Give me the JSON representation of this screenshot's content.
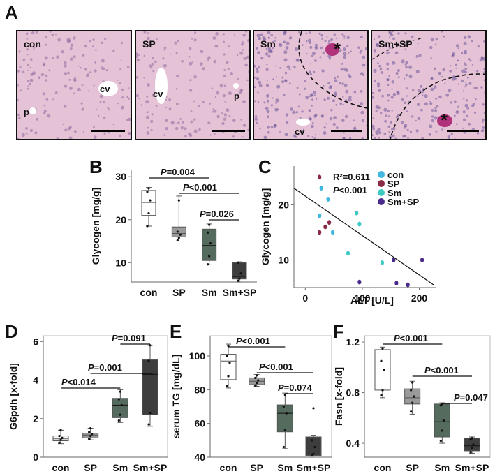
{
  "panel_letters": {
    "a": "A",
    "b": "B",
    "c": "C",
    "d": "D",
    "e": "E",
    "f": "F"
  },
  "micrographs": [
    {
      "label": "con",
      "annotations": [
        "cv",
        "p"
      ]
    },
    {
      "label": "SP",
      "annotations": [
        "cv",
        "p"
      ]
    },
    {
      "label": "Sm",
      "annotations": [
        "cv",
        "*"
      ]
    },
    {
      "label": "Sm+SP",
      "annotations": [
        "*"
      ]
    }
  ],
  "colors": {
    "con": "#ffffff",
    "SP": "#9a9a9a",
    "Sm": "#556b5e",
    "Sm+SP": "#3d3d3d",
    "scatter_con": "#40b8e0",
    "scatter_SP": "#8b2a45",
    "scatter_Sm": "#3ec9c0",
    "scatter_SmSP": "#4a2a8a",
    "tissue": "#e6c2d6"
  },
  "chart_data": [
    {
      "type": "box",
      "panel": "B",
      "ylabel": "Glycogen [mg/g]",
      "categories": [
        "con",
        "SP",
        "Sm",
        "Sm+SP"
      ],
      "yticks": [
        10,
        20,
        30
      ],
      "ylim": [
        5.5,
        31.5
      ],
      "boxes": [
        {
          "min": 18.5,
          "q1": 21,
          "median": 24,
          "q3": 26.8,
          "max": 27.5,
          "points": [
            18.5,
            21.5,
            24.5,
            26.5,
            27.3
          ]
        },
        {
          "min": 15,
          "q1": 16,
          "median": 16.8,
          "q3": 18.3,
          "max": 25.5,
          "points": [
            15.2,
            15.8,
            16.5,
            17.2,
            24.5
          ]
        },
        {
          "min": 9.5,
          "q1": 10.5,
          "median": 14,
          "q3": 17.8,
          "max": 19,
          "points": [
            9.6,
            11.5,
            14.5,
            17,
            18.8
          ]
        },
        {
          "min": 5.5,
          "q1": 6.2,
          "median": 6.8,
          "q3": 10,
          "max": 10.2,
          "points": [
            5.8,
            6.3,
            7.5,
            10
          ]
        }
      ],
      "comparisons": [
        {
          "from": 0,
          "to": 2,
          "text": "P=0.004"
        },
        {
          "from": 1,
          "to": 3,
          "text": "P<0.001"
        },
        {
          "from": 2,
          "to": 3,
          "text": "P=0.026"
        }
      ]
    },
    {
      "type": "scatter",
      "panel": "C",
      "xlabel": "ALT [U/L]",
      "ylabel": "Glycogen [mg/g]",
      "xticks": [
        0,
        100,
        200
      ],
      "yticks": [
        10,
        20
      ],
      "xlim": [
        -20,
        230
      ],
      "ylim": [
        5,
        27
      ],
      "r2_label": "R²=0.611",
      "p_label": "P<0.001",
      "series": [
        {
          "name": "con",
          "points": [
            [
              25,
              18
            ],
            [
              28,
              23
            ],
            [
              40,
              21
            ],
            [
              48,
              15
            ]
          ]
        },
        {
          "name": "SP",
          "points": [
            [
              25,
              25
            ],
            [
              25,
              15
            ],
            [
              35,
              16
            ],
            [
              42,
              16.8
            ]
          ]
        },
        {
          "name": "Sm",
          "points": [
            [
              75,
              11.2
            ],
            [
              90,
              18.5
            ],
            [
              95,
              16.5
            ],
            [
              135,
              9.5
            ]
          ]
        },
        {
          "name": "Sm+SP",
          "points": [
            [
              95,
              6
            ],
            [
              155,
              10
            ],
            [
              160,
              5.8
            ],
            [
              180,
              5.5
            ],
            [
              205,
              10
            ]
          ]
        }
      ],
      "regression": [
        [
          -20,
          23
        ],
        [
          225,
          5.5
        ]
      ]
    },
    {
      "type": "box",
      "panel": "D",
      "ylabel": "G6pdh [x-fold]",
      "categories": [
        "con",
        "SP",
        "Sm",
        "Sm+SP"
      ],
      "yticks": [
        0,
        2,
        4,
        6
      ],
      "ylim": [
        0,
        6.3
      ],
      "boxes": [
        {
          "min": 0.7,
          "q1": 0.85,
          "median": 0.95,
          "q3": 1.1,
          "max": 1.4,
          "points": [
            0.75,
            0.9,
            1.0,
            1.1,
            1.4
          ]
        },
        {
          "min": 0.9,
          "q1": 1.0,
          "median": 1.15,
          "q3": 1.25,
          "max": 1.5,
          "points": [
            0.95,
            1.1,
            1.2,
            1.3,
            1.5
          ]
        },
        {
          "min": 1.8,
          "q1": 2.05,
          "median": 2.7,
          "q3": 3.05,
          "max": 3.5,
          "points": [
            1.9,
            2.2,
            2.7,
            3.0,
            3.4
          ]
        },
        {
          "min": 1.6,
          "q1": 2.2,
          "median": 4.3,
          "q3": 5.05,
          "max": 5.8,
          "points": [
            1.7,
            2.3,
            4.3,
            5.0,
            5.8
          ]
        }
      ],
      "comparisons": [
        {
          "from": 0,
          "to": 2,
          "text": "P<0.014"
        },
        {
          "from": 1,
          "to": 3,
          "text": "P=0.001"
        },
        {
          "from": 2,
          "to": 3,
          "text": "P=0.091"
        }
      ]
    },
    {
      "type": "box",
      "panel": "E",
      "ylabel": "serum TG [mg/dL]",
      "categories": [
        "con",
        "SP",
        "Sm",
        "Sm+SP"
      ],
      "yticks": [
        40,
        60,
        80,
        100
      ],
      "ylim": [
        40,
        112
      ],
      "boxes": [
        {
          "min": 81,
          "q1": 86,
          "median": 97,
          "q3": 101,
          "max": 107,
          "points": [
            82,
            88,
            96,
            100,
            106
          ]
        },
        {
          "min": 82,
          "q1": 83,
          "median": 85,
          "q3": 87,
          "max": 89,
          "points": [
            82.5,
            84,
            85.5,
            87,
            88.5
          ]
        },
        {
          "min": 45,
          "q1": 55,
          "median": 66,
          "q3": 71,
          "max": 78,
          "points": [
            46,
            56,
            66,
            70,
            77
          ]
        },
        {
          "min": 41,
          "q1": 41,
          "median": 46,
          "q3": 52,
          "max": 53,
          "points": [
            41,
            42,
            46,
            50,
            69
          ]
        }
      ],
      "comparisons": [
        {
          "from": 0,
          "to": 2,
          "text": "P<0.001"
        },
        {
          "from": 1,
          "to": 3,
          "text": "P<0.001"
        },
        {
          "from": 2,
          "to": 3,
          "text": "P=0.074"
        }
      ]
    },
    {
      "type": "box",
      "panel": "F",
      "ylabel": "Fasn [x-fold]",
      "categories": [
        "con",
        "SP",
        "Sm",
        "Sm+SP"
      ],
      "yticks": [
        0.4,
        0.8,
        1.2
      ],
      "ylim": [
        0.29,
        1.25
      ],
      "boxes": [
        {
          "min": 0.76,
          "q1": 0.82,
          "median": 1.01,
          "q3": 1.14,
          "max": 1.16,
          "points": [
            0.78,
            0.82,
            0.98,
            1.05,
            1.15
          ]
        },
        {
          "min": 0.63,
          "q1": 0.71,
          "median": 0.76,
          "q3": 0.83,
          "max": 0.89,
          "points": [
            0.65,
            0.72,
            0.77,
            0.82,
            0.88
          ]
        },
        {
          "min": 0.4,
          "q1": 0.45,
          "median": 0.57,
          "q3": 0.71,
          "max": 0.72,
          "points": [
            0.42,
            0.5,
            0.58,
            0.7,
            0.71
          ]
        },
        {
          "min": 0.32,
          "q1": 0.34,
          "median": 0.38,
          "q3": 0.44,
          "max": 0.45,
          "points": [
            0.33,
            0.36,
            0.39,
            0.43,
            0.44
          ]
        }
      ],
      "comparisons": [
        {
          "from": 0,
          "to": 2,
          "text": "P<0.001"
        },
        {
          "from": 1,
          "to": 3,
          "text": "P<0.001"
        },
        {
          "from": 2,
          "to": 3,
          "text": "P=0.047"
        }
      ]
    }
  ]
}
